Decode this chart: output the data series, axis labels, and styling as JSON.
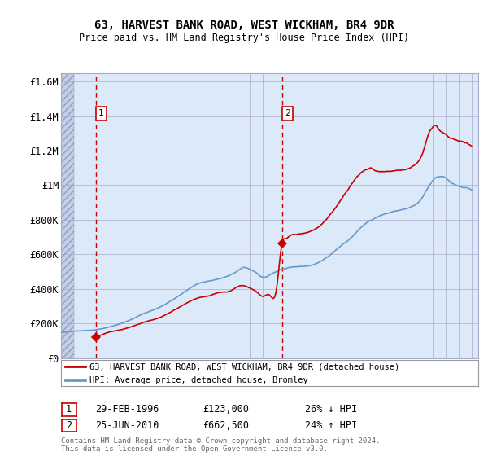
{
  "title": "63, HARVEST BANK ROAD, WEST WICKHAM, BR4 9DR",
  "subtitle": "Price paid vs. HM Land Registry's House Price Index (HPI)",
  "legend_line1": "63, HARVEST BANK ROAD, WEST WICKHAM, BR4 9DR (detached house)",
  "legend_line2": "HPI: Average price, detached house, Bromley",
  "footnote1": "Contains HM Land Registry data © Crown copyright and database right 2024.",
  "footnote2": "This data is licensed under the Open Government Licence v3.0.",
  "sale1_date": 1996.16,
  "sale1_price": 123000,
  "sale1_label": "1",
  "sale1_info": "29-FEB-1996",
  "sale1_price_str": "£123,000",
  "sale1_pct": "26% ↓ HPI",
  "sale2_date": 2010.48,
  "sale2_price": 662500,
  "sale2_label": "2",
  "sale2_info": "25-JUN-2010",
  "sale2_price_str": "£662,500",
  "sale2_pct": "24% ↑ HPI",
  "ylim": [
    0,
    1650000
  ],
  "xlim": [
    1993.5,
    2025.5
  ],
  "y_ticks": [
    0,
    200000,
    400000,
    600000,
    800000,
    1000000,
    1200000,
    1400000,
    1600000
  ],
  "y_tick_labels": [
    "£0",
    "£200K",
    "£400K",
    "£600K",
    "£800K",
    "£1M",
    "£1.2M",
    "£1.4M",
    "£1.6M"
  ],
  "hatch_end_x": 1994.5,
  "bg_color": "#dce9f8",
  "hatch_color": "#c0d0e8",
  "red_line_color": "#cc0000",
  "blue_line_color": "#6699cc",
  "grid_color": "#aaaacc",
  "sale_dot_color": "#cc0000"
}
